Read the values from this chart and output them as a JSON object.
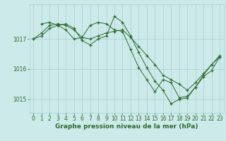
{
  "line1_x": [
    0,
    1,
    2,
    3,
    4,
    5,
    6,
    7,
    8,
    9,
    10,
    11,
    12,
    13,
    14,
    15,
    16,
    17,
    18,
    19,
    20,
    21,
    22,
    23
  ],
  "line1_y": [
    1017.0,
    1017.2,
    1017.45,
    1017.5,
    1017.45,
    1017.3,
    1017.05,
    1017.0,
    1017.1,
    1017.2,
    1017.25,
    1017.3,
    1017.05,
    1016.75,
    1016.45,
    1016.15,
    1015.8,
    1015.65,
    1015.5,
    1015.3,
    1015.55,
    1015.85,
    1016.15,
    1016.4
  ],
  "line2_x": [
    0,
    1,
    2,
    3,
    4,
    5,
    6,
    7,
    8,
    9,
    10,
    11,
    12,
    13,
    14,
    15,
    16,
    17,
    18,
    19,
    20,
    21,
    22,
    23
  ],
  "line2_y": [
    1017.0,
    1017.1,
    1017.35,
    1017.45,
    1017.5,
    1017.35,
    1016.95,
    1016.8,
    1017.0,
    1017.1,
    1017.75,
    1017.55,
    1017.1,
    1016.55,
    1016.05,
    1015.6,
    1015.3,
    1014.85,
    1015.0,
    1015.05,
    1015.4,
    1015.8,
    1016.15,
    1016.45
  ],
  "line3_x": [
    1,
    2,
    3,
    4,
    5,
    6,
    7,
    8,
    9,
    10,
    11,
    12,
    13,
    14,
    15,
    16,
    17,
    18,
    19,
    20,
    21,
    22,
    23
  ],
  "line3_y": [
    1017.5,
    1017.55,
    1017.45,
    1017.3,
    1017.0,
    1017.05,
    1017.45,
    1017.55,
    1017.5,
    1017.3,
    1017.25,
    1016.65,
    1016.05,
    1015.65,
    1015.25,
    1015.65,
    1015.55,
    1015.05,
    1015.1,
    1015.4,
    1015.75,
    1015.95,
    1016.4
  ],
  "line_color": "#2d6a2d",
  "marker": "+",
  "marker_size": 3.5,
  "marker_lw": 0.9,
  "line_width": 0.7,
  "bg_color": "#cdeaea",
  "grid_color": "#aacfcf",
  "xlabel": "Graphe pression niveau de la mer (hPa)",
  "ylim": [
    1014.55,
    1018.15
  ],
  "xlim": [
    -0.5,
    23.5
  ],
  "yticks": [
    1015,
    1016,
    1017
  ],
  "xticks": [
    0,
    1,
    2,
    3,
    4,
    5,
    6,
    7,
    8,
    9,
    10,
    11,
    12,
    13,
    14,
    15,
    16,
    17,
    18,
    19,
    20,
    21,
    22,
    23
  ],
  "tick_fontsize": 5.5,
  "xlabel_fontsize": 6.5
}
